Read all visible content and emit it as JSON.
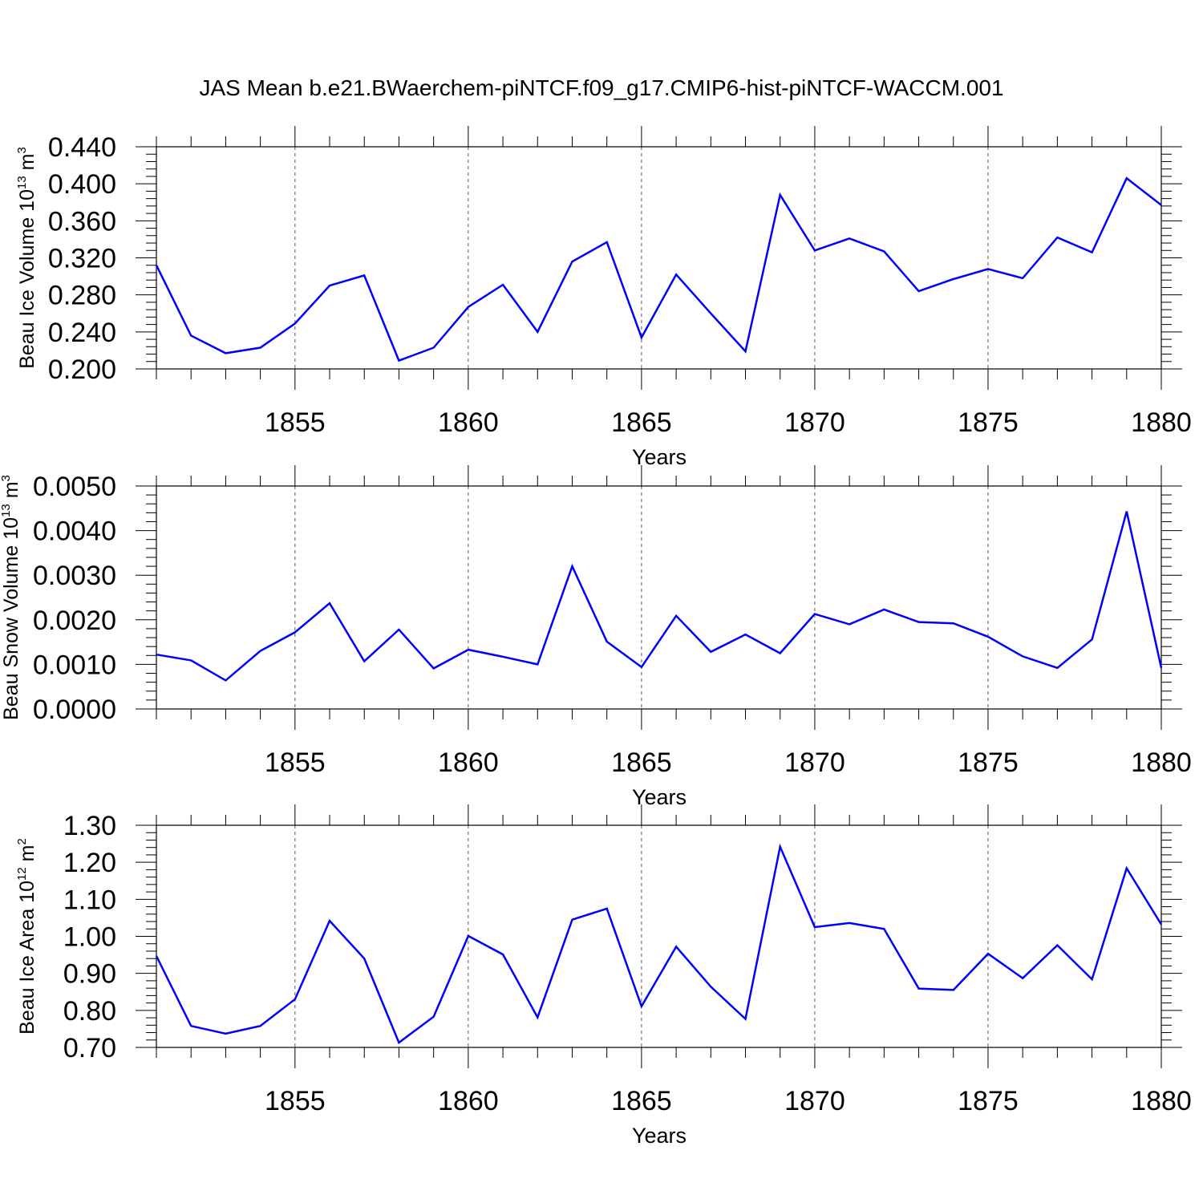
{
  "title": "JAS Mean b.e21.BWaerchem-piNTCF.f09_g17.CMIP6-hist-piNTCF-WACCM.001",
  "line_color": "#0000ff",
  "chart_data": [
    {
      "type": "line",
      "title": "JAS Mean b.e21.BWaerchem-piNTCF.f09_g17.CMIP6-hist-piNTCF-WACCM.001",
      "ylabel": {
        "prefix": "Beau Ice Volume 10",
        "sup": "13",
        "unit": " m",
        "unit_sup": "3"
      },
      "xlabel": "Years",
      "xlim": [
        1851,
        1880
      ],
      "ylim": [
        0.2,
        0.44
      ],
      "xticks": [
        1855,
        1860,
        1865,
        1870,
        1875,
        1880
      ],
      "xtick_labels": [
        "1855",
        "1860",
        "1865",
        "1870",
        "1875",
        "1880"
      ],
      "yticks": [
        0.2,
        0.24,
        0.28,
        0.32,
        0.36,
        0.4,
        0.44
      ],
      "ytick_labels": [
        "0.200",
        "0.240",
        "0.280",
        "0.320",
        "0.360",
        "0.400",
        "0.440"
      ],
      "x": [
        1851,
        1852,
        1853,
        1854,
        1855,
        1856,
        1857,
        1858,
        1859,
        1860,
        1861,
        1862,
        1863,
        1864,
        1865,
        1866,
        1867,
        1868,
        1869,
        1870,
        1871,
        1872,
        1873,
        1874,
        1875,
        1876,
        1877,
        1878,
        1879,
        1880
      ],
      "values": [
        0.312,
        0.236,
        0.217,
        0.223,
        0.249,
        0.29,
        0.301,
        0.209,
        0.223,
        0.267,
        0.291,
        0.24,
        0.316,
        0.337,
        0.234,
        0.302,
        0.26,
        0.219,
        0.388,
        0.328,
        0.341,
        0.327,
        0.284,
        0.297,
        0.308,
        0.298,
        0.342,
        0.326,
        0.406,
        0.377
      ]
    },
    {
      "type": "line",
      "ylabel": {
        "prefix": "Beau Snow Volume 10",
        "sup": "13",
        "unit": " m",
        "unit_sup": "3"
      },
      "xlabel": "Years",
      "xlim": [
        1851,
        1880
      ],
      "ylim": [
        0.0,
        0.005
      ],
      "xticks": [
        1855,
        1860,
        1865,
        1870,
        1875,
        1880
      ],
      "xtick_labels": [
        "1855",
        "1860",
        "1865",
        "1870",
        "1875",
        "1880"
      ],
      "yticks": [
        0.0,
        0.001,
        0.002,
        0.003,
        0.004,
        0.005
      ],
      "ytick_labels": [
        "0.0000",
        "0.0010",
        "0.0020",
        "0.0030",
        "0.0040",
        "0.0050"
      ],
      "x": [
        1851,
        1852,
        1853,
        1854,
        1855,
        1856,
        1857,
        1858,
        1859,
        1860,
        1861,
        1862,
        1863,
        1864,
        1865,
        1866,
        1867,
        1868,
        1869,
        1870,
        1871,
        1872,
        1873,
        1874,
        1875,
        1876,
        1877,
        1878,
        1879,
        1880
      ],
      "values": [
        0.00122,
        0.00109,
        0.00064,
        0.0013,
        0.00172,
        0.00237,
        0.00107,
        0.00178,
        0.00091,
        0.00133,
        0.00117,
        0.001,
        0.0032,
        0.00151,
        0.00094,
        0.00209,
        0.00128,
        0.00167,
        0.00125,
        0.00213,
        0.0019,
        0.00223,
        0.00195,
        0.00192,
        0.00162,
        0.00118,
        0.00092,
        0.00156,
        0.00443,
        0.00092
      ]
    },
    {
      "type": "line",
      "ylabel": {
        "prefix": "Beau Ice Area 10",
        "sup": "12",
        "unit": " m",
        "unit_sup": "2"
      },
      "xlabel": "Years",
      "xlim": [
        1851,
        1880
      ],
      "ylim": [
        0.7,
        1.3
      ],
      "xticks": [
        1855,
        1860,
        1865,
        1870,
        1875,
        1880
      ],
      "xtick_labels": [
        "1855",
        "1860",
        "1865",
        "1870",
        "1875",
        "1880"
      ],
      "yticks": [
        0.7,
        0.8,
        0.9,
        1.0,
        1.1,
        1.2,
        1.3
      ],
      "ytick_labels": [
        "0.70",
        "0.80",
        "0.90",
        "1.00",
        "1.10",
        "1.20",
        "1.30"
      ],
      "x": [
        1851,
        1852,
        1853,
        1854,
        1855,
        1856,
        1857,
        1858,
        1859,
        1860,
        1861,
        1862,
        1863,
        1864,
        1865,
        1866,
        1867,
        1868,
        1869,
        1870,
        1871,
        1872,
        1873,
        1874,
        1875,
        1876,
        1877,
        1878,
        1879,
        1880
      ],
      "values": [
        0.947,
        0.758,
        0.737,
        0.758,
        0.83,
        1.042,
        0.94,
        0.713,
        0.783,
        1.001,
        0.951,
        0.781,
        1.045,
        1.075,
        0.811,
        0.972,
        0.864,
        0.777,
        1.242,
        1.025,
        1.036,
        1.02,
        0.859,
        0.855,
        0.953,
        0.887,
        0.976,
        0.884,
        1.184,
        1.032
      ]
    }
  ]
}
